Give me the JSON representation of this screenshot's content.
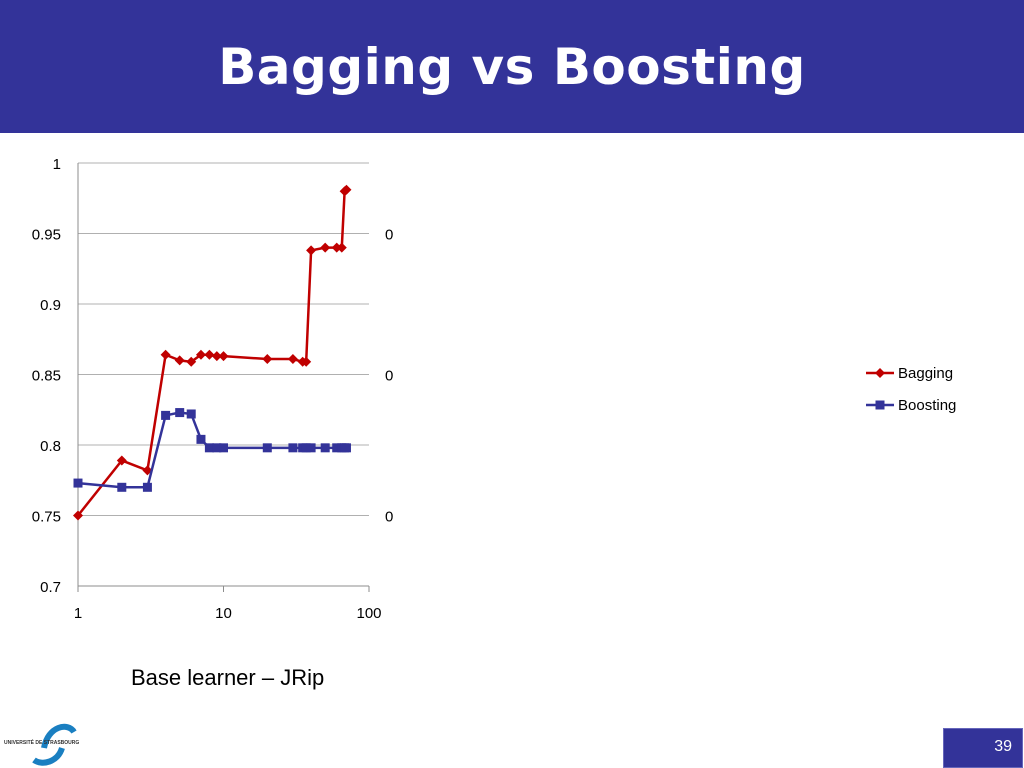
{
  "slide": {
    "title": "Bagging vs Boosting",
    "caption": "Base learner – JRip",
    "page_number": "39",
    "logo_text": "UNIVERSITÉ DE STRASBOURG",
    "accent_color": "#333399"
  },
  "chart_data": {
    "type": "line",
    "x_scale": "log",
    "xlim": [
      1,
      100
    ],
    "ylim": [
      0.7,
      1
    ],
    "x_ticks": [
      1,
      10,
      100
    ],
    "x_tick_labels": [
      "1",
      "10",
      "100"
    ],
    "y_ticks": [
      0.7,
      0.75,
      0.8,
      0.85,
      0.9,
      0.95,
      1
    ],
    "y_tick_labels": [
      "0.7",
      "0.75",
      "0.8",
      "0.85",
      "0.9",
      "0.95",
      "1"
    ],
    "right_axis_partial_labels": [
      "0",
      "0",
      "0"
    ],
    "grid": "horizontal",
    "legend_position": "right",
    "series": [
      {
        "name": "Bagging",
        "color": "#c00000",
        "marker": "diamond",
        "x": [
          1,
          2,
          3,
          4,
          5,
          6,
          7,
          8,
          9,
          10,
          20,
          30,
          35,
          37,
          40,
          50,
          60,
          65,
          68,
          70
        ],
        "y": [
          0.75,
          0.789,
          0.782,
          0.864,
          0.86,
          0.859,
          0.864,
          0.864,
          0.863,
          0.863,
          0.861,
          0.861,
          0.859,
          0.859,
          0.938,
          0.94,
          0.94,
          0.94,
          0.98,
          0.981
        ]
      },
      {
        "name": "Boosting",
        "color": "#333399",
        "marker": "square",
        "x": [
          1,
          2,
          3,
          4,
          5,
          6,
          7,
          8,
          9,
          10,
          20,
          30,
          35,
          37,
          40,
          50,
          60,
          65,
          68,
          70
        ],
        "y": [
          0.773,
          0.77,
          0.77,
          0.821,
          0.823,
          0.822,
          0.804,
          0.798,
          0.798,
          0.798,
          0.798,
          0.798,
          0.798,
          0.798,
          0.798,
          0.798,
          0.798,
          0.798,
          0.798,
          0.798
        ]
      }
    ]
  }
}
